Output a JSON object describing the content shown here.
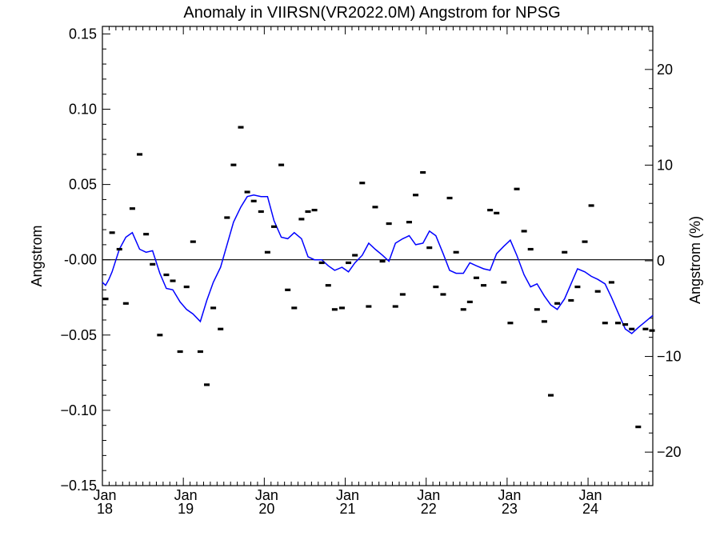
{
  "chart_data": {
    "type": "scatter",
    "title": "Anomaly in VIIRSN(VR2022.0M) Angstrom for NPSG",
    "ylabel": "Angstrom",
    "ylabel_right": "Angstrom (%)",
    "xlim": [
      2018.0,
      2024.8
    ],
    "ylim": [
      -0.15,
      0.155
    ],
    "ylim_right_percent": [
      -23.5,
      24.5
    ],
    "x_ticks": [
      {
        "x": 2018.0,
        "month": "Jan",
        "year": "18"
      },
      {
        "x": 2019.0,
        "month": "Jan",
        "year": "19"
      },
      {
        "x": 2020.0,
        "month": "Jan",
        "year": "20"
      },
      {
        "x": 2021.0,
        "month": "Jan",
        "year": "21"
      },
      {
        "x": 2022.0,
        "month": "Jan",
        "year": "22"
      },
      {
        "x": 2023.0,
        "month": "Jan",
        "year": "23"
      },
      {
        "x": 2024.0,
        "month": "Jan",
        "year": "24"
      }
    ],
    "y_ticks_left": [
      {
        "value": 0.15,
        "label": "0.15"
      },
      {
        "value": 0.1,
        "label": "0.10"
      },
      {
        "value": 0.05,
        "label": "0.05"
      },
      {
        "value": 0.0,
        "label": "-0.00"
      },
      {
        "value": -0.05,
        "label": "−0.05"
      },
      {
        "value": -0.1,
        "label": "−0.10"
      },
      {
        "value": -0.15,
        "label": "−0.15"
      }
    ],
    "y_ticks_right": [
      {
        "value": 20,
        "label": "20"
      },
      {
        "value": 10,
        "label": "10"
      },
      {
        "value": 0,
        "label": "0"
      },
      {
        "value": -10,
        "label": "−10"
      },
      {
        "value": -20,
        "label": "−20"
      }
    ],
    "zero_line": true,
    "series": [
      {
        "kind": "monthly_anomaly_markers",
        "color": "#000000",
        "x": [
          2018.04,
          2018.12,
          2018.21,
          2018.29,
          2018.37,
          2018.46,
          2018.54,
          2018.62,
          2018.71,
          2018.79,
          2018.87,
          2018.96,
          2019.04,
          2019.12,
          2019.21,
          2019.29,
          2019.37,
          2019.46,
          2019.54,
          2019.62,
          2019.71,
          2019.79,
          2019.87,
          2019.96,
          2020.04,
          2020.12,
          2020.21,
          2020.29,
          2020.37,
          2020.46,
          2020.54,
          2020.62,
          2020.71,
          2020.79,
          2020.87,
          2020.96,
          2021.04,
          2021.12,
          2021.21,
          2021.29,
          2021.37,
          2021.46,
          2021.54,
          2021.62,
          2021.71,
          2021.79,
          2021.87,
          2021.96,
          2022.04,
          2022.12,
          2022.21,
          2022.29,
          2022.37,
          2022.46,
          2022.54,
          2022.62,
          2022.71,
          2022.79,
          2022.87,
          2022.96,
          2023.04,
          2023.12,
          2023.21,
          2023.29,
          2023.37,
          2023.46,
          2023.54,
          2023.62,
          2023.71,
          2023.79,
          2023.87,
          2023.96,
          2024.04,
          2024.12,
          2024.21,
          2024.29,
          2024.37,
          2024.46,
          2024.54,
          2024.62,
          2024.71,
          2024.79
        ],
        "y": [
          -0.026,
          0.018,
          0.007,
          -0.029,
          0.034,
          0.07,
          0.017,
          -0.003,
          -0.05,
          -0.01,
          -0.014,
          -0.061,
          -0.018,
          0.012,
          -0.061,
          -0.083,
          -0.032,
          -0.046,
          0.028,
          0.063,
          0.088,
          0.045,
          0.039,
          0.032,
          0.005,
          0.022,
          0.063,
          -0.02,
          -0.032,
          0.027,
          0.032,
          0.033,
          -0.002,
          -0.017,
          -0.033,
          -0.032,
          -0.002,
          0.003,
          0.051,
          -0.031,
          0.035,
          -0.001,
          0.024,
          -0.031,
          -0.023,
          0.025,
          0.043,
          0.058,
          0.008,
          -0.018,
          -0.023,
          0.041,
          0.005,
          -0.033,
          -0.028,
          -0.012,
          -0.017,
          0.033,
          0.031,
          -0.015,
          -0.042,
          0.047,
          0.019,
          0.007,
          -0.033,
          -0.041,
          -0.09,
          -0.029,
          0.005,
          -0.027,
          -0.018,
          0.012,
          0.036,
          -0.021,
          -0.042,
          -0.015,
          -0.042,
          -0.043,
          -0.046,
          -0.111,
          -0.046,
          -0.047
        ]
      },
      {
        "kind": "running_mean_line",
        "color": "#0000ff",
        "x": [
          2018.0,
          2018.04,
          2018.08,
          2018.12,
          2018.21,
          2018.29,
          2018.37,
          2018.46,
          2018.54,
          2018.62,
          2018.71,
          2018.79,
          2018.87,
          2018.96,
          2019.04,
          2019.12,
          2019.21,
          2019.29,
          2019.37,
          2019.46,
          2019.54,
          2019.62,
          2019.71,
          2019.79,
          2019.87,
          2019.96,
          2020.04,
          2020.12,
          2020.21,
          2020.29,
          2020.37,
          2020.46,
          2020.54,
          2020.62,
          2020.71,
          2020.79,
          2020.87,
          2020.96,
          2021.04,
          2021.12,
          2021.21,
          2021.29,
          2021.37,
          2021.46,
          2021.54,
          2021.62,
          2021.71,
          2021.79,
          2021.87,
          2021.96,
          2022.04,
          2022.12,
          2022.21,
          2022.29,
          2022.37,
          2022.46,
          2022.54,
          2022.62,
          2022.71,
          2022.79,
          2022.87,
          2022.96,
          2023.04,
          2023.12,
          2023.21,
          2023.29,
          2023.37,
          2023.46,
          2023.54,
          2023.62,
          2023.71,
          2023.79,
          2023.87,
          2023.96,
          2024.04,
          2024.12,
          2024.21,
          2024.29,
          2024.37,
          2024.46,
          2024.54,
          2024.62,
          2024.71,
          2024.8
        ],
        "y": [
          -0.015,
          -0.017,
          -0.013,
          -0.008,
          0.007,
          0.015,
          0.018,
          0.007,
          0.005,
          0.006,
          -0.009,
          -0.019,
          -0.02,
          -0.028,
          -0.033,
          -0.036,
          -0.041,
          -0.027,
          -0.015,
          -0.005,
          0.01,
          0.025,
          0.035,
          0.042,
          0.043,
          0.042,
          0.042,
          0.026,
          0.015,
          0.014,
          0.018,
          0.014,
          0.002,
          0.0,
          0.0,
          -0.004,
          -0.007,
          -0.005,
          -0.008,
          -0.002,
          0.003,
          0.011,
          0.007,
          0.003,
          -0.001,
          0.011,
          0.014,
          0.016,
          0.01,
          0.011,
          0.019,
          0.016,
          0.004,
          -0.007,
          -0.009,
          -0.009,
          -0.002,
          -0.004,
          -0.006,
          -0.007,
          0.004,
          0.009,
          0.013,
          0.003,
          -0.01,
          -0.018,
          -0.016,
          -0.024,
          -0.03,
          -0.033,
          -0.026,
          -0.016,
          -0.006,
          -0.008,
          -0.011,
          -0.013,
          -0.016,
          -0.025,
          -0.035,
          -0.046,
          -0.049,
          -0.045,
          -0.041,
          -0.037
        ]
      }
    ]
  }
}
